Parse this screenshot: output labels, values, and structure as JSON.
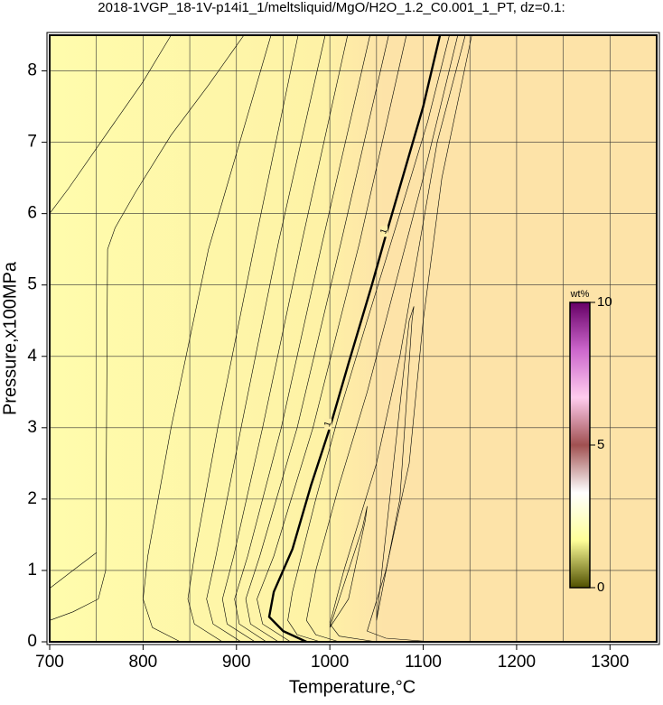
{
  "chart_data": {
    "type": "contour",
    "title": "2018-1VGP_18-1V-p14i1_1/meltsliquid/MgO/H2O_1.2_C0.001_1_PT, dz=0.1:",
    "x_label": "Temperature,°C",
    "y_label": "Pressure,x100MPa",
    "xlim": [
      700,
      1350
    ],
    "ylim": [
      0,
      8.5
    ],
    "xticks": [
      700,
      800,
      900,
      1000,
      1100,
      1200,
      1300
    ],
    "xminorticks": [
      750,
      850,
      950,
      1050,
      1150,
      1250,
      1350
    ],
    "yticks": [
      0,
      1,
      2,
      3,
      4,
      5,
      6,
      7,
      8
    ],
    "grid": true,
    "fill_colors": [
      "#fffcac",
      "#fef2a6",
      "#fde3a8"
    ],
    "line_color": "#000000",
    "contours": [
      {
        "level": 0.1,
        "x": [
          700,
          720,
          760,
          800,
          830
        ],
        "y": [
          6.0,
          6.35,
          7.1,
          7.85,
          8.5
        ]
      },
      {
        "level": 0.1,
        "x": [
          700,
          725,
          750
        ],
        "y": [
          0.75,
          1.0,
          1.25
        ]
      },
      {
        "level": 0.2,
        "x": [
          700,
          725,
          752,
          760,
          762,
          770,
          792,
          830,
          870,
          908
        ],
        "y": [
          0.3,
          0.42,
          0.6,
          1.0,
          5.5,
          5.8,
          6.3,
          7.1,
          7.8,
          8.5
        ]
      },
      {
        "level": 0.3,
        "x": [
          840,
          810,
          800,
          805,
          830,
          870,
          937
        ],
        "y": [
          0,
          0.2,
          0.6,
          1.2,
          3.0,
          5.5,
          8.5
        ]
      },
      {
        "level": 0.4,
        "x": [
          885,
          855,
          848,
          855,
          880,
          920,
          966
        ],
        "y": [
          0,
          0.25,
          0.6,
          1.2,
          3.0,
          5.6,
          8.5
        ]
      },
      {
        "level": 0.5,
        "x": [
          905,
          875,
          868,
          878,
          905,
          945,
          995
        ],
        "y": [
          0,
          0.25,
          0.6,
          1.2,
          3.0,
          5.6,
          8.5
        ]
      },
      {
        "level": 0.6,
        "x": [
          920,
          890,
          885,
          897,
          928,
          970,
          1019
        ],
        "y": [
          0,
          0.25,
          0.6,
          1.2,
          3.0,
          5.6,
          8.5
        ]
      },
      {
        "level": 0.7,
        "x": [
          932,
          903,
          898,
          912,
          948,
          992,
          1043
        ],
        "y": [
          0,
          0.25,
          0.6,
          1.2,
          3.0,
          5.6,
          8.5
        ]
      },
      {
        "level": 0.8,
        "x": [
          945,
          915,
          910,
          925,
          965,
          1012,
          1063
        ],
        "y": [
          0,
          0.25,
          0.6,
          1.2,
          3.0,
          5.6,
          8.5
        ]
      },
      {
        "level": 0.9,
        "x": [
          958,
          928,
          922,
          940,
          982,
          1032,
          1082
        ],
        "y": [
          0,
          0.25,
          0.6,
          1.2,
          3.0,
          5.6,
          8.5
        ]
      },
      {
        "level": 1,
        "x": [
          975,
          950,
          935,
          940,
          960,
          980,
          1000,
          1020,
          1045,
          1060,
          1080,
          1100,
          1118
        ],
        "y": [
          0,
          0.15,
          0.35,
          0.7,
          1.3,
          2.2,
          3.0,
          3.9,
          5.0,
          5.7,
          6.6,
          7.5,
          8.5
        ]
      },
      {
        "level": 1.1,
        "x": [
          990,
          965,
          955,
          960,
          985,
          1010,
          1040,
          1075,
          1105,
          1128
        ],
        "y": [
          0,
          0.1,
          0.3,
          0.7,
          2,
          3.2,
          4.5,
          6,
          7.3,
          8.5
        ]
      },
      {
        "level": 1.2,
        "x": [
          1010,
          985,
          975,
          985,
          1010,
          1040,
          1070,
          1100,
          1137
        ],
        "y": [
          0,
          0.1,
          0.3,
          1,
          2.2,
          3.5,
          5,
          6.5,
          8.5
        ]
      },
      {
        "level": 1.3,
        "x": [
          1050,
          1010,
          1000,
          1015,
          1050,
          1075,
          1095,
          1115,
          1145
        ],
        "y": [
          0,
          0.08,
          0.25,
          1,
          2.5,
          4,
          5.5,
          7,
          8.5
        ]
      },
      {
        "level": 1.4,
        "x": [
          1110,
          1060,
          1040,
          1060,
          1085,
          1100,
          1120,
          1152
        ],
        "y": [
          0,
          0.05,
          0.15,
          1,
          2.5,
          4.5,
          6.5,
          8.5
        ]
      },
      {
        "level": 1.25,
        "x": [
          1000,
          1035,
          1040,
          1038,
          1020,
          1000
        ],
        "y": [
          0.2,
          1.6,
          1.9,
          1.7,
          0.6,
          0.2
        ]
      },
      {
        "level": 1.35,
        "x": [
          1050,
          1085,
          1090,
          1088,
          1075,
          1050
        ],
        "y": [
          0.3,
          4.5,
          4.7,
          4.5,
          2,
          0.3
        ]
      }
    ],
    "colorbar": {
      "label": "wt%",
      "lim": [
        0,
        10
      ],
      "ticks": [
        0,
        5,
        10
      ],
      "colors": [
        "#505000",
        "#ffff99",
        "#ffffff",
        "#a05050",
        "#ffccee",
        "#cc66cc",
        "#660066"
      ]
    }
  }
}
